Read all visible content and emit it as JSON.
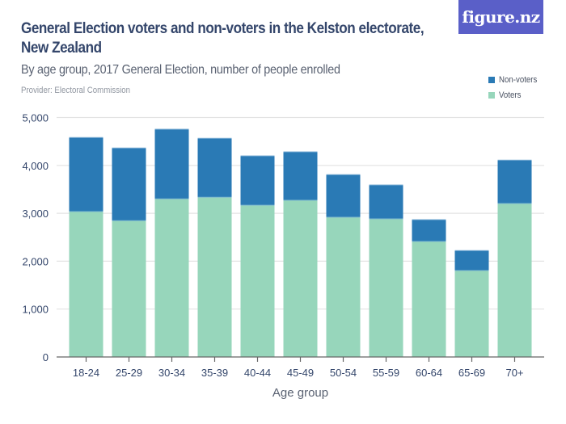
{
  "header": {
    "title_line1": "General Election voters and non-voters in the Kelston electorate,",
    "title_line2": "New Zealand",
    "subtitle": "By age group, 2017 General Election, number of people enrolled",
    "provider": "Provider: Electoral Commission",
    "logo_text": "figure.nz"
  },
  "colors": {
    "non_voters": "#2a7ab5",
    "voters": "#97d6bb",
    "logo_bg": "#5a5fc8",
    "title": "#34466b",
    "gridline": "#e3e3e3",
    "axis": "#666666"
  },
  "legend": [
    {
      "label": "Non-voters",
      "color": "#2a7ab5"
    },
    {
      "label": "Voters",
      "color": "#97d6bb"
    }
  ],
  "chart_data": {
    "type": "bar",
    "stacked": true,
    "title": "General Election voters and non-voters in the Kelston electorate, New Zealand",
    "subtitle": "By age group, 2017 General Election, number of people enrolled",
    "xlabel": "Age group",
    "ylabel": "",
    "ylim": [
      0,
      5000
    ],
    "yticks": [
      0,
      1000,
      2000,
      3000,
      4000,
      5000
    ],
    "ytick_labels": [
      "0",
      "1,000",
      "2,000",
      "3,000",
      "4,000",
      "5,000"
    ],
    "grid": true,
    "legend_position": "top-right",
    "categories": [
      "18-24",
      "25-29",
      "30-34",
      "35-39",
      "40-44",
      "45-49",
      "50-54",
      "55-59",
      "60-64",
      "65-69",
      "70+"
    ],
    "series": [
      {
        "name": "Voters",
        "color": "#97d6bb",
        "values": [
          3035,
          2845,
          3300,
          3334,
          3168,
          3271,
          2917,
          2884,
          2411,
          1804,
          3204
        ]
      },
      {
        "name": "Non-voters",
        "color": "#2a7ab5",
        "values": [
          1547,
          1518,
          1455,
          1231,
          1031,
          1012,
          889,
          708,
          456,
          417,
          906
        ]
      }
    ]
  }
}
